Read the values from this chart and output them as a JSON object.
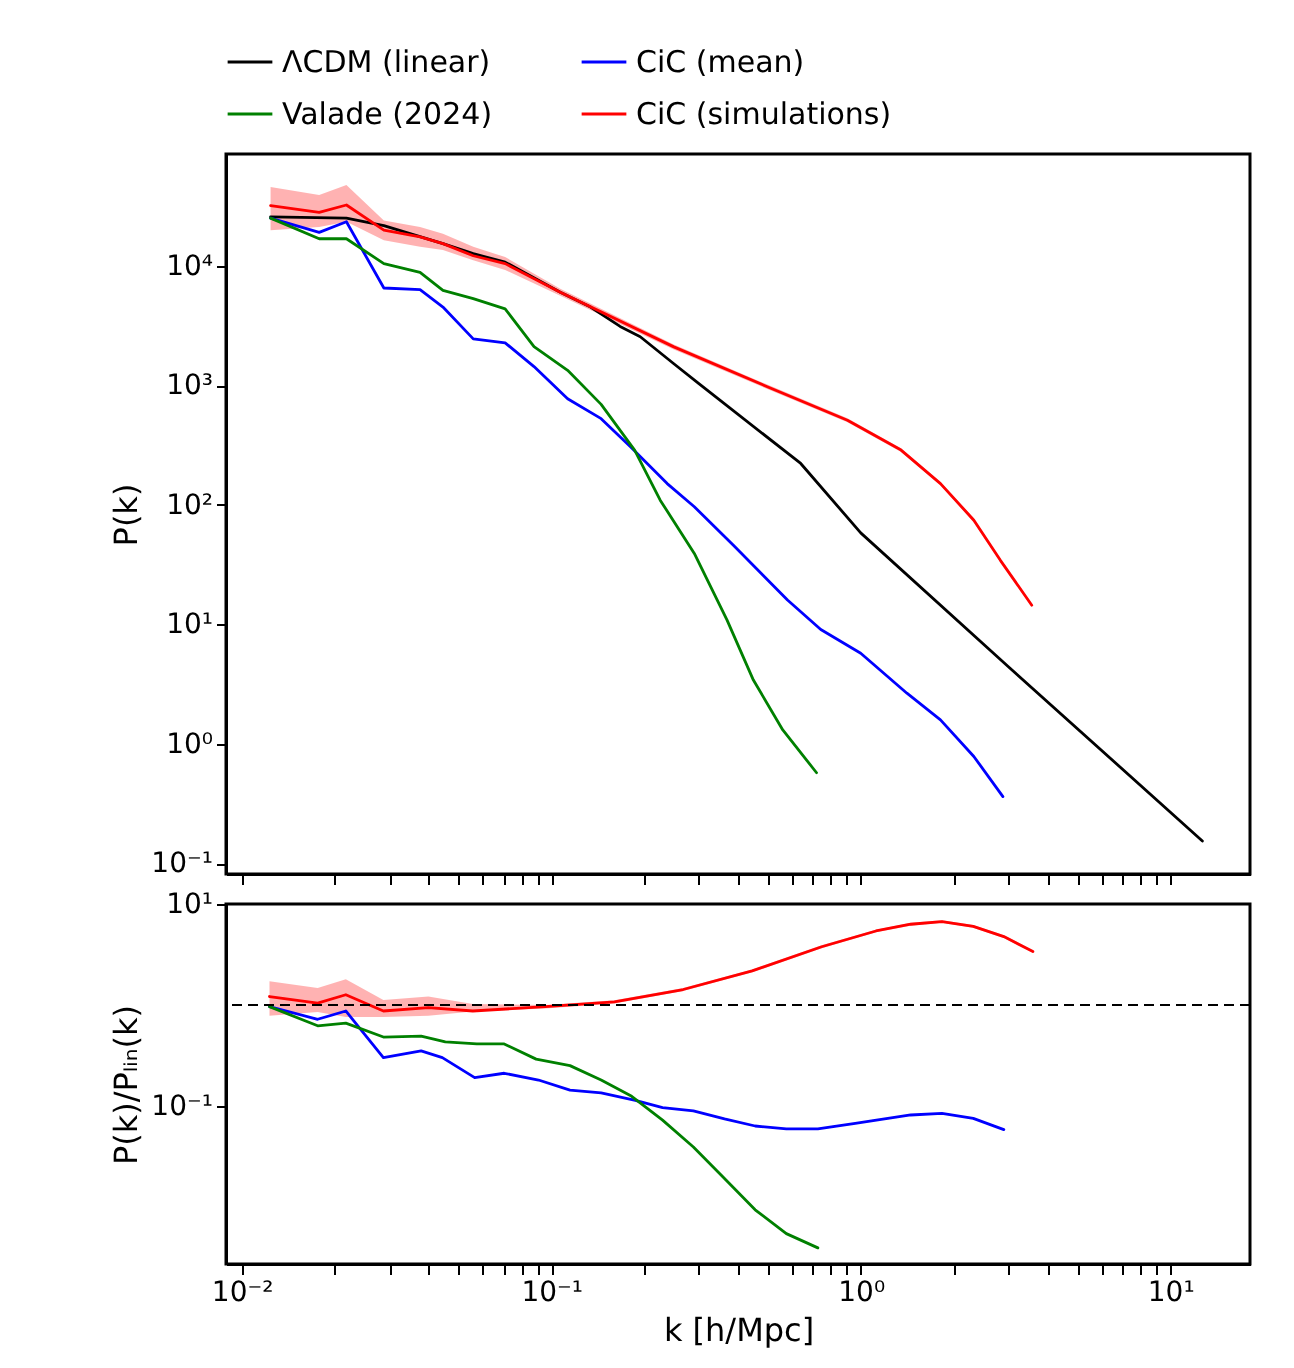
{
  "chart_data": [
    {
      "type": "line",
      "ylabel": "P(k)",
      "log": "xy",
      "legend": "top",
      "tick_labels": "y",
      "xlim": [
        0.0089,
        18.1
      ],
      "ylim": [
        0.081,
        86000
      ],
      "xticks": [
        0.01,
        0.02,
        0.03,
        0.04,
        0.05,
        0.06,
        0.07,
        0.08,
        0.09,
        0.1,
        0.2,
        0.3,
        0.4,
        0.5,
        0.6,
        0.7,
        0.8,
        0.9,
        1,
        2,
        3,
        4,
        5,
        6,
        7,
        8,
        9,
        10
      ],
      "yticks": [
        {
          "value": 0.1,
          "label": "10⁻¹"
        },
        {
          "value": 1,
          "label": "10⁰"
        },
        {
          "value": 10,
          "label": "10¹"
        },
        {
          "value": 100,
          "label": "10²"
        },
        {
          "value": 1000,
          "label": "10³"
        },
        {
          "value": 10000,
          "label": "10⁴"
        }
      ],
      "series": [
        {
          "name": "ΛCDM (linear)",
          "color": "#000000",
          "x": [
            0.0124,
            0.0218,
            0.0288,
            0.0447,
            0.056,
            0.071,
            0.107,
            0.134,
            0.167,
            0.194,
            0.249,
            0.3,
            0.64,
            1,
            3,
            12.7
          ],
          "values": [
            25600,
            25000,
            21600,
            15300,
            12600,
            10700,
            6000,
            4500,
            3100,
            2540,
            1510,
            1030,
            221,
            58,
            4.4,
            0.153
          ]
        },
        {
          "name": "CiC (mean)",
          "color": "#0000ff",
          "x": [
            0.0124,
            0.0178,
            0.0218,
            0.0288,
            0.0377,
            0.0447,
            0.056,
            0.071,
            0.088,
            0.113,
            0.145,
            0.18,
            0.237,
            0.29,
            0.39,
            0.58,
            0.743,
            1,
            1.41,
            1.81,
            2.32,
            2.88
          ],
          "values": [
            25000,
            19000,
            23300,
            6500,
            6300,
            4500,
            2440,
            2260,
            1430,
            770,
            524,
            306,
            150,
            96,
            45,
            15.9,
            9,
            5.7,
            2.64,
            1.58,
            0.78,
            0.36
          ]
        },
        {
          "name": "Valade (2024)",
          "color": "#008000",
          "x": [
            0.0124,
            0.0178,
            0.0218,
            0.0288,
            0.0377,
            0.0447,
            0.056,
            0.071,
            0.088,
            0.113,
            0.145,
            0.186,
            0.225,
            0.29,
            0.37,
            0.45,
            0.56,
            0.72
          ],
          "values": [
            25000,
            16800,
            16800,
            10400,
            8800,
            6200,
            5300,
            4350,
            2100,
            1330,
            690,
            286,
            109,
            39,
            10.8,
            3.4,
            1.3,
            0.57
          ]
        },
        {
          "name": "CiC (simulations)",
          "color": "#ff0000",
          "x": [
            0.0124,
            0.0178,
            0.0218,
            0.0288,
            0.0377,
            0.0447,
            0.056,
            0.071,
            0.107,
            0.249,
            0.499,
            0.906,
            1.35,
            1.81,
            2.32,
            2.83,
            3.57
          ],
          "values": [
            31800,
            27900,
            32200,
            19800,
            17400,
            15300,
            12100,
            10400,
            6000,
            2090,
            970,
            509,
            286,
            150,
            74,
            34,
            14.4
          ],
          "lower": [
            19800,
            21100,
            23300,
            16300,
            14400,
            13500,
            11100,
            9200,
            5600,
            1990,
            930,
            490,
            276,
            145,
            71,
            33,
            14
          ],
          "upper": [
            45600,
            39000,
            47300,
            23900,
            21100,
            18500,
            14400,
            11800,
            6400,
            2190,
            1010,
            528,
            296,
            155,
            77,
            35,
            14.8
          ]
        }
      ]
    },
    {
      "type": "line",
      "xlabel": "k [h/Mpc]",
      "ylabel": "P(k)/Pₗᵢₙ(k)",
      "log": "xy",
      "xlim": [
        0.0089,
        18.1
      ],
      "ylim": [
        0.0027,
        10
      ],
      "xticks": [
        {
          "value": 0.01,
          "label": "10⁻²"
        },
        {
          "value": 0.02,
          "label": null
        },
        {
          "value": 0.03,
          "label": null
        },
        {
          "value": 0.04,
          "label": null
        },
        {
          "value": 0.05,
          "label": null
        },
        {
          "value": 0.06,
          "label": null
        },
        {
          "value": 0.07,
          "label": null
        },
        {
          "value": 0.08,
          "label": null
        },
        {
          "value": 0.09,
          "label": null
        },
        {
          "value": 0.1,
          "label": "10⁻¹"
        },
        {
          "value": 0.2,
          "label": null
        },
        {
          "value": 0.3,
          "label": null
        },
        {
          "value": 0.4,
          "label": null
        },
        {
          "value": 0.5,
          "label": null
        },
        {
          "value": 0.6,
          "label": null
        },
        {
          "value": 0.7,
          "label": null
        },
        {
          "value": 0.8,
          "label": null
        },
        {
          "value": 0.9,
          "label": null
        },
        {
          "value": 1,
          "label": "10⁰"
        },
        {
          "value": 2,
          "label": null
        },
        {
          "value": 3,
          "label": null
        },
        {
          "value": 4,
          "label": null
        },
        {
          "value": 5,
          "label": null
        },
        {
          "value": 6,
          "label": null
        },
        {
          "value": 7,
          "label": null
        },
        {
          "value": 8,
          "label": null
        },
        {
          "value": 9,
          "label": null
        },
        {
          "value": 10,
          "label": "10¹"
        }
      ],
      "yticks": [
        {
          "value": 0.1,
          "label": "10⁻¹"
        },
        {
          "value": 10,
          "label": "10¹"
        }
      ],
      "ref_lines": [
        {
          "axis": "y",
          "value": 1,
          "label": null,
          "color": "#000000",
          "line_style": "dashed"
        }
      ],
      "series": [
        {
          "color": "#0000ff",
          "x": [
            0.0123,
            0.0176,
            0.0217,
            0.0287,
            0.038,
            0.0445,
            0.0566,
            0.0705,
            0.091,
            0.115,
            0.145,
            0.187,
            0.229,
            0.288,
            0.363,
            0.456,
            0.575,
            0.727,
            0.96,
            1.45,
            1.83,
            2.31,
            2.9
          ],
          "values": [
            0.96,
            0.72,
            0.87,
            0.3,
            0.35,
            0.3,
            0.19,
            0.21,
            0.18,
            0.143,
            0.134,
            0.113,
            0.096,
            0.089,
            0.074,
            0.063,
            0.059,
            0.059,
            0.067,
            0.081,
            0.084,
            0.075,
            0.058
          ]
        },
        {
          "color": "#008000",
          "x": [
            0.0123,
            0.0176,
            0.0217,
            0.0287,
            0.038,
            0.0455,
            0.0575,
            0.0705,
            0.0894,
            0.115,
            0.145,
            0.182,
            0.229,
            0.288,
            0.363,
            0.456,
            0.575,
            0.727
          ],
          "values": [
            0.96,
            0.62,
            0.66,
            0.48,
            0.49,
            0.43,
            0.41,
            0.41,
            0.29,
            0.25,
            0.18,
            0.124,
            0.072,
            0.039,
            0.019,
            0.0093,
            0.0054,
            0.0039
          ]
        },
        {
          "color": "#ff0000",
          "x": [
            0.0123,
            0.0176,
            0.0217,
            0.0287,
            0.0401,
            0.0558,
            0.0958,
            0.16,
            0.267,
            0.446,
            0.748,
            1.12,
            1.45,
            1.83,
            2.31,
            2.9,
            3.6
          ],
          "values": [
            1.21,
            1.04,
            1.26,
            0.87,
            0.94,
            0.87,
            0.96,
            1.07,
            1.42,
            2.17,
            3.77,
            5.4,
            6.3,
            6.7,
            6,
            4.75,
            3.38
          ],
          "lower": [
            0.78,
            0.85,
            0.76,
            0.76,
            0.78,
            0.86,
            0.92,
            1.03,
            1.37,
            2.1,
            3.65,
            5.25,
            6.1,
            6.5,
            5.8,
            4.6,
            3.28
          ],
          "upper": [
            1.71,
            1.47,
            1.8,
            1.12,
            1.21,
            1.02,
            1,
            1.11,
            1.47,
            2.24,
            3.9,
            5.55,
            6.5,
            6.9,
            6.2,
            4.9,
            3.48
          ]
        }
      ]
    }
  ]
}
